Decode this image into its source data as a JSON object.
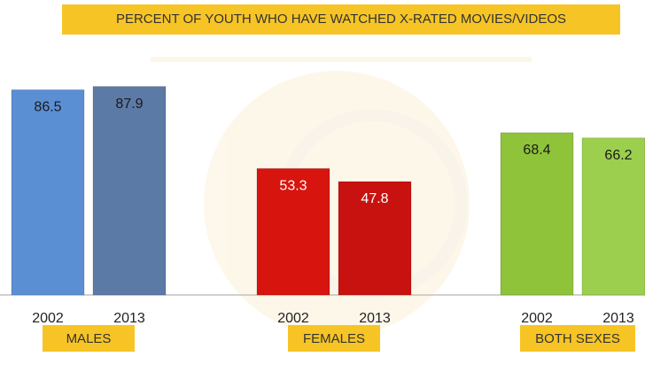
{
  "chart_data": {
    "type": "bar",
    "title": "PERCENT OF YOUTH WHO HAVE WATCHED X-RATED MOVIES/VIDEOS",
    "groups": [
      {
        "name": "MALES",
        "categories": [
          "2002",
          "2013"
        ],
        "values": [
          86.5,
          87.9
        ],
        "colors": [
          "#5b8fd4",
          "#5c7aa6"
        ],
        "label_color": "#1a1a1a"
      },
      {
        "name": "FEMALES",
        "categories": [
          "2002",
          "2013"
        ],
        "values": [
          53.3,
          47.8
        ],
        "colors": [
          "#d8140f",
          "#c81210"
        ],
        "label_color": "#ffffff"
      },
      {
        "name": "BOTH SEXES",
        "categories": [
          "2002",
          "2013"
        ],
        "values": [
          68.4,
          66.2
        ],
        "colors": [
          "#8ec33a",
          "#9bcf4d"
        ],
        "label_color": "#1a1a1a"
      }
    ],
    "ylim": [
      0,
      90
    ]
  }
}
